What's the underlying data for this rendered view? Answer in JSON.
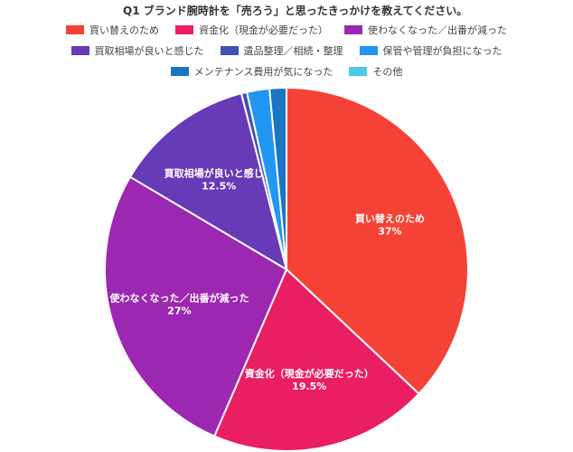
{
  "chart_data": {
    "type": "pie",
    "title": "Q1 ブランド腕時計を「売ろう」と思ったきっかけを教えてください。",
    "legend_position": "top",
    "slices": [
      {
        "name": "買い替えのため",
        "value": 37,
        "label": "37%",
        "color": "#f44336"
      },
      {
        "name": "資金化（現金が必要だった）",
        "value": 19.5,
        "label": "19.5%",
        "color": "#e91e63"
      },
      {
        "name": "使わなくなった／出番が減った",
        "value": 27,
        "label": "27%",
        "color": "#9c27b0"
      },
      {
        "name": "買取相場が良いと感じた",
        "value": 12.5,
        "label": "12.5%",
        "color": "#673ab7"
      },
      {
        "name": "遺品整理／相続・整理",
        "value": 0.5,
        "label": "",
        "color": "#3f51b5"
      },
      {
        "name": "保管や管理が負担になった",
        "value": 2,
        "label": "",
        "color": "#2196f3"
      },
      {
        "name": "メンテナンス費用が気になった",
        "value": 1.5,
        "label": "",
        "color": "#1a75c2"
      },
      {
        "name": "その他",
        "value": 0,
        "label": "",
        "color": "#4dc9e6"
      }
    ]
  }
}
